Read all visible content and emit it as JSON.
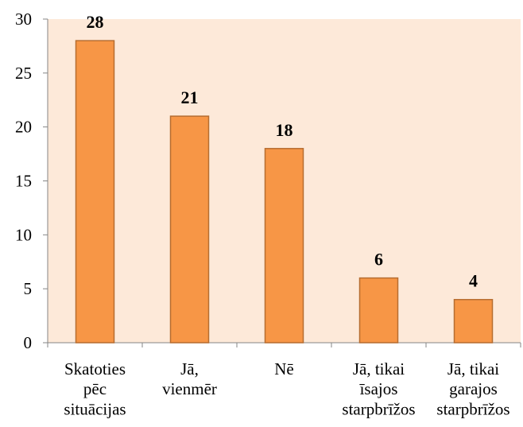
{
  "chart_data": {
    "type": "bar",
    "categories": [
      "Skatoties\npēc\nsituācijas",
      "Jā,\nvienmēr",
      "Nē",
      "Jā, tikai\nīsajos\nstarpbrīžos",
      "Jā, tikai\ngarajos\nstarpbrīžos"
    ],
    "values": [
      28,
      21,
      18,
      6,
      4
    ],
    "color": "#f79646",
    "ylim": [
      0,
      30
    ],
    "yticks": [
      0,
      5,
      10,
      15,
      20,
      25,
      30
    ],
    "grid": false
  }
}
